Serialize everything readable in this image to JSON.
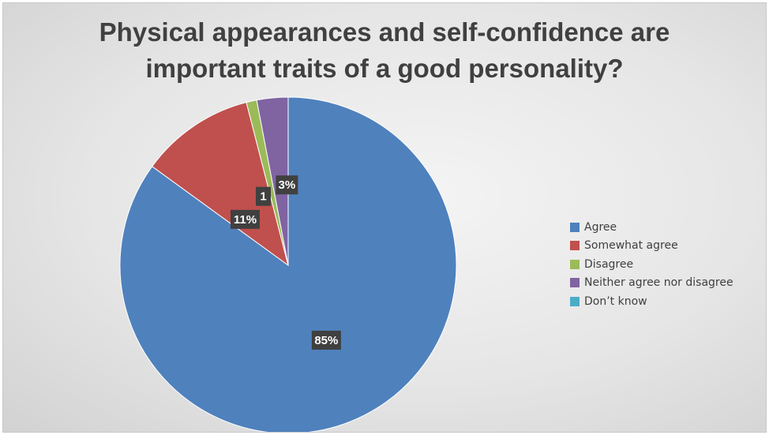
{
  "chart_data": {
    "type": "pie",
    "title": "Physical appearances and self-confidence are\nimportant traits of a good personality?",
    "categories": [
      "Agree",
      "Somewhat agree",
      "Disagree",
      "Neither agree nor disagree",
      "Don’t know"
    ],
    "values": [
      85,
      11,
      1,
      3,
      0
    ],
    "data_labels": [
      "85%",
      "11%",
      "1",
      "3%",
      ""
    ],
    "colors": [
      "#4f81bd",
      "#c0504d",
      "#9bbb59",
      "#8064a2",
      "#4bacc6"
    ],
    "legend_position": "right",
    "start_angle": "top, clockwise"
  }
}
